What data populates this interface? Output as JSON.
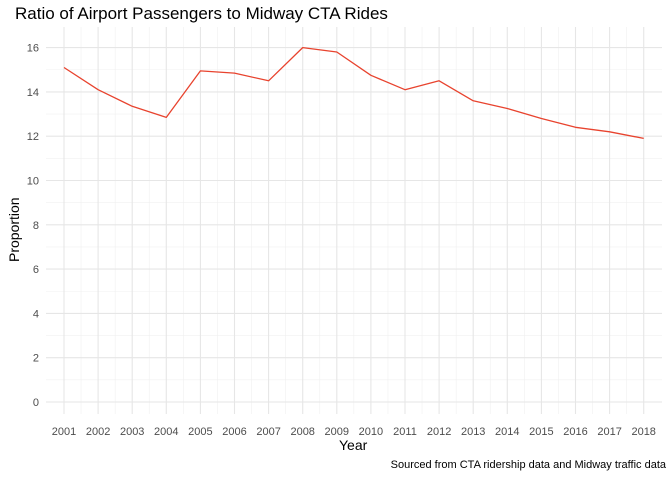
{
  "chart_data": {
    "type": "line",
    "title": "Ratio of Airport Passengers to Midway CTA Rides",
    "xlabel": "Year",
    "ylabel": "Proportion",
    "caption": "Sourced from CTA ridership data and Midway traffic data",
    "x": [
      "2001",
      "2002",
      "2003",
      "2004",
      "2005",
      "2006",
      "2007",
      "2008",
      "2009",
      "2010",
      "2011",
      "2012",
      "2013",
      "2014",
      "2015",
      "2016",
      "2017",
      "2018"
    ],
    "series": [
      {
        "values": [
          15.1,
          14.1,
          13.35,
          12.85,
          14.95,
          14.85,
          14.5,
          16.0,
          15.8,
          14.75,
          14.1,
          14.5,
          13.6,
          13.25,
          12.8,
          12.4,
          12.2,
          11.9
        ],
        "color": "#e8432e"
      }
    ],
    "yticks": [
      0,
      2,
      4,
      6,
      8,
      10,
      12,
      14,
      16
    ],
    "ylim": [
      -0.8,
      16.8
    ],
    "grid": true,
    "legend": "none"
  }
}
